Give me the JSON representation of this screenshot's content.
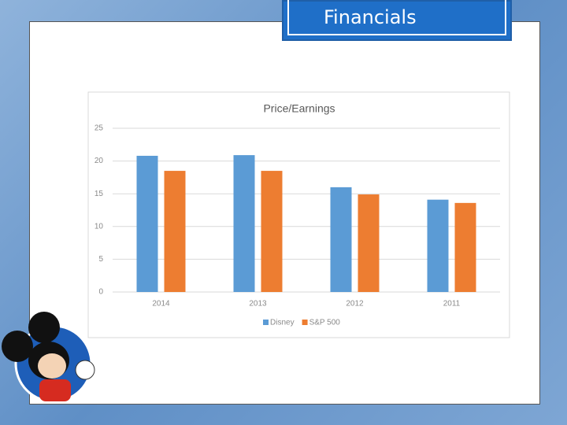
{
  "slide_title": "Financials",
  "chart_data": {
    "type": "bar",
    "title": "Price/Earnings",
    "categories": [
      "2014",
      "2013",
      "2012",
      "2011"
    ],
    "series": [
      {
        "name": "Disney",
        "color": "#5b9bd5",
        "values": [
          20.8,
          20.9,
          16.0,
          14.1
        ]
      },
      {
        "name": "S&P 500",
        "color": "#ed7d31",
        "values": [
          18.5,
          18.5,
          14.9,
          13.6
        ]
      }
    ],
    "ylim": [
      0,
      25
    ],
    "yticks": [
      0,
      5,
      10,
      15,
      20,
      25
    ],
    "grid": true,
    "legend": "bottom"
  }
}
